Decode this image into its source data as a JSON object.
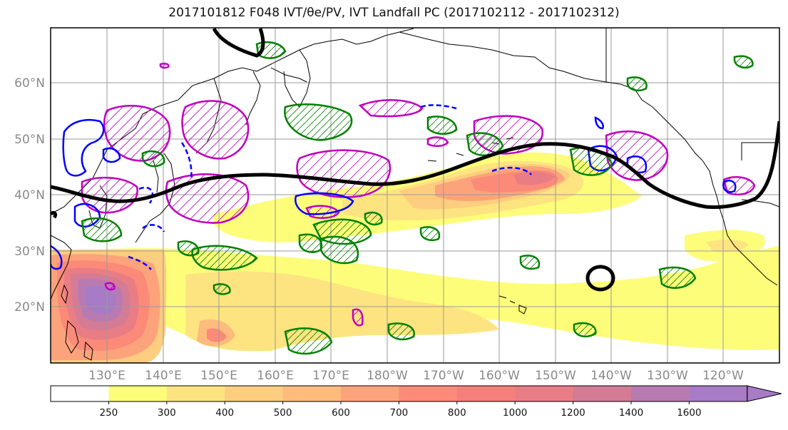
{
  "title": "2017101812 F048 IVT/θe/PV, IVT Landfall PC (2017102112 - 2017102312)",
  "map": {
    "lat_labels": [
      "60°N",
      "50°N",
      "40°N",
      "30°N",
      "20°N"
    ],
    "lon_labels": [
      "130°E",
      "140°E",
      "150°E",
      "160°E",
      "170°E",
      "180°W",
      "170°W",
      "160°W",
      "150°W",
      "140°W",
      "130°W",
      "120°W"
    ],
    "extent": {
      "lon_min": 120,
      "lon_max": 250,
      "lat_min": 10,
      "lat_max": 70
    },
    "colors": {
      "coast": "#000000",
      "grid": "#9a9a9a",
      "contour_black": "#000000",
      "contour_green": "#008000",
      "contour_blue": "#0000ff",
      "contour_magenta": "#bf00bf"
    }
  },
  "colorbar": {
    "levels": [
      "250",
      "300",
      "400",
      "500",
      "600",
      "700",
      "800",
      "1000",
      "1200",
      "1400",
      "1600"
    ],
    "colors": [
      "#ffffff",
      "#fdfd7a",
      "#fde480",
      "#fdcd80",
      "#fdbb7e",
      "#fda37b",
      "#fb8a78",
      "#f57f7a",
      "#e97d85",
      "#d47b95",
      "#b87bb1",
      "#a77bc5"
    ],
    "extend": "max"
  }
}
